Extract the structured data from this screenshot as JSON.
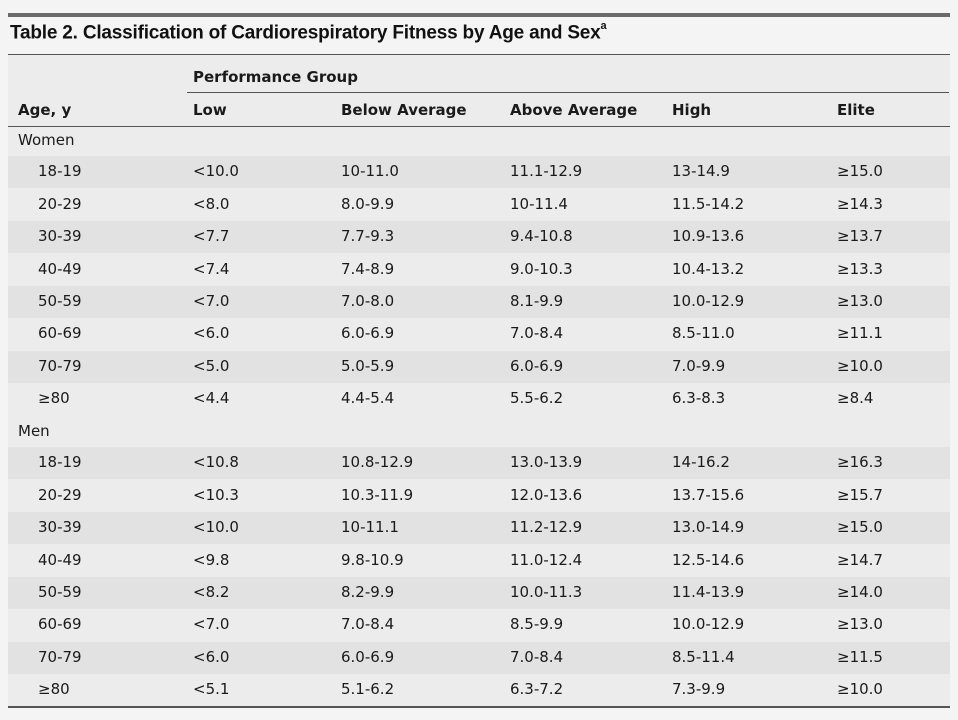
{
  "table": {
    "title": "Table 2. Classification of Cardiorespiratory Fitness by Age and Sex",
    "title_footnote": "a",
    "group_header": "Performance Group",
    "columns": [
      "Age, y",
      "Low",
      "Below Average",
      "Above Average",
      "High",
      "Elite"
    ],
    "sections": [
      {
        "label": "Women",
        "rows": [
          [
            "18-19",
            "<10.0",
            "10-11.0",
            "11.1-12.9",
            "13-14.9",
            "≥15.0"
          ],
          [
            "20-29",
            "<8.0",
            "8.0-9.9",
            "10-11.4",
            "11.5-14.2",
            "≥14.3"
          ],
          [
            "30-39",
            "<7.7",
            "7.7-9.3",
            "9.4-10.8",
            "10.9-13.6",
            "≥13.7"
          ],
          [
            "40-49",
            "<7.4",
            "7.4-8.9",
            "9.0-10.3",
            "10.4-13.2",
            "≥13.3"
          ],
          [
            "50-59",
            "<7.0",
            "7.0-8.0",
            "8.1-9.9",
            "10.0-12.9",
            "≥13.0"
          ],
          [
            "60-69",
            "<6.0",
            "6.0-6.9",
            "7.0-8.4",
            "8.5-11.0",
            "≥11.1"
          ],
          [
            "70-79",
            "<5.0",
            "5.0-5.9",
            "6.0-6.9",
            "7.0-9.9",
            "≥10.0"
          ],
          [
            "≥80",
            "<4.4",
            "4.4-5.4",
            "5.5-6.2",
            "6.3-8.3",
            "≥8.4"
          ]
        ]
      },
      {
        "label": "Men",
        "rows": [
          [
            "18-19",
            "<10.8",
            "10.8-12.9",
            "13.0-13.9",
            "14-16.2",
            "≥16.3"
          ],
          [
            "20-29",
            "<10.3",
            "10.3-11.9",
            "12.0-13.6",
            "13.7-15.6",
            "≥15.7"
          ],
          [
            "30-39",
            "<10.0",
            "10-11.1",
            "11.2-12.9",
            "13.0-14.9",
            "≥15.0"
          ],
          [
            "40-49",
            "<9.8",
            "9.8-10.9",
            "11.0-12.4",
            "12.5-14.6",
            "≥14.7"
          ],
          [
            "50-59",
            "<8.2",
            "8.2-9.9",
            "10.0-11.3",
            "11.4-13.9",
            "≥14.0"
          ],
          [
            "60-69",
            "<7.0",
            "7.0-8.4",
            "8.5-9.9",
            "10.0-12.9",
            "≥13.0"
          ],
          [
            "70-79",
            "<6.0",
            "6.0-6.9",
            "7.0-8.4",
            "8.5-11.4",
            "≥11.5"
          ],
          [
            "≥80",
            "<5.1",
            "5.1-6.2",
            "6.3-7.2",
            "7.3-9.9",
            "≥10.0"
          ]
        ]
      }
    ]
  }
}
